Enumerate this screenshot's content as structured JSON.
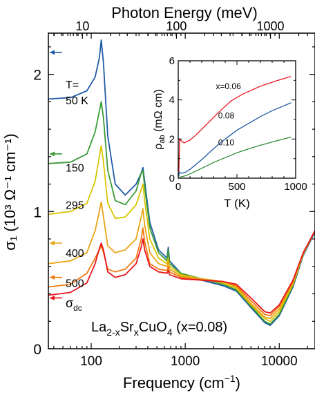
{
  "chart_data": [
    {
      "type": "line",
      "title": "",
      "top_axis_label": "Photon Energy (meV)",
      "top_ticks": [
        "10",
        "100",
        "1000"
      ],
      "xlabel_prefix": "Frequency (cm",
      "xlabel_suffix": ")",
      "xlabel_exp": "−1",
      "ylabel_text": "σ₁ (10³ Ω⁻¹ cm⁻¹)",
      "x_scale": "log",
      "xlim": [
        35,
        24000
      ],
      "ylim": [
        0,
        2.3
      ],
      "x_ticks": [
        "100",
        "1000",
        "10000"
      ],
      "y_ticks": [
        "0",
        "1",
        "2"
      ],
      "material_parts": [
        "La",
        "2-x",
        "Sr",
        "x",
        "CuO",
        "4",
        " (x=0.08)"
      ],
      "sigma_dc_label": "σ",
      "sigma_dc_sub": "dc",
      "temperature_header": [
        "T=",
        "50 K"
      ],
      "series": [
        {
          "name": "50 K",
          "label": "50 K",
          "color": "#1f5aa6",
          "dc_arrow": 2.16,
          "points": [
            [
              35,
              1.82
            ],
            [
              60,
              1.83
            ],
            [
              90,
              1.88
            ],
            [
              110,
              1.98
            ],
            [
              122,
              2.12
            ],
            [
              128,
              2.25
            ],
            [
              135,
              2.08
            ],
            [
              150,
              1.55
            ],
            [
              180,
              1.2
            ],
            [
              230,
              1.12
            ],
            [
              300,
              1.2
            ],
            [
              340,
              1.28
            ],
            [
              355,
              1.32
            ],
            [
              370,
              1.22
            ],
            [
              420,
              0.92
            ],
            [
              520,
              0.72
            ],
            [
              640,
              0.66
            ],
            [
              660,
              0.74
            ],
            [
              680,
              0.64
            ],
            [
              900,
              0.55
            ],
            [
              1500,
              0.5
            ],
            [
              2500,
              0.46
            ],
            [
              3500,
              0.42
            ],
            [
              5000,
              0.3
            ],
            [
              7000,
              0.19
            ],
            [
              8000,
              0.17
            ],
            [
              10000,
              0.24
            ],
            [
              14000,
              0.45
            ],
            [
              18000,
              0.68
            ],
            [
              24000,
              0.85
            ]
          ]
        },
        {
          "name": "150",
          "label": "150",
          "color": "#3a9a35",
          "dc_arrow": 1.42,
          "points": [
            [
              35,
              1.35
            ],
            [
              60,
              1.36
            ],
            [
              90,
              1.42
            ],
            [
              110,
              1.58
            ],
            [
              122,
              1.73
            ],
            [
              128,
              1.8
            ],
            [
              135,
              1.68
            ],
            [
              150,
              1.3
            ],
            [
              180,
              1.08
            ],
            [
              230,
              1.05
            ],
            [
              300,
              1.15
            ],
            [
              340,
              1.28
            ],
            [
              355,
              1.3
            ],
            [
              370,
              1.18
            ],
            [
              420,
              0.88
            ],
            [
              520,
              0.7
            ],
            [
              640,
              0.64
            ],
            [
              660,
              0.72
            ],
            [
              680,
              0.62
            ],
            [
              900,
              0.55
            ],
            [
              1500,
              0.51
            ],
            [
              2500,
              0.47
            ],
            [
              3500,
              0.43
            ],
            [
              5000,
              0.31
            ],
            [
              7000,
              0.2
            ],
            [
              8000,
              0.18
            ],
            [
              10000,
              0.25
            ],
            [
              14000,
              0.46
            ],
            [
              18000,
              0.69
            ],
            [
              24000,
              0.86
            ]
          ]
        },
        {
          "name": "295",
          "label": "295",
          "color": "#d9c400",
          "dc_arrow": null,
          "points": [
            [
              35,
              0.98
            ],
            [
              60,
              1.0
            ],
            [
              90,
              1.06
            ],
            [
              110,
              1.22
            ],
            [
              122,
              1.4
            ],
            [
              128,
              1.48
            ],
            [
              135,
              1.36
            ],
            [
              150,
              1.06
            ],
            [
              180,
              0.95
            ],
            [
              230,
              0.96
            ],
            [
              300,
              1.05
            ],
            [
              340,
              1.16
            ],
            [
              355,
              1.2
            ],
            [
              370,
              1.08
            ],
            [
              420,
              0.8
            ],
            [
              520,
              0.66
            ],
            [
              640,
              0.62
            ],
            [
              660,
              0.66
            ],
            [
              680,
              0.6
            ],
            [
              900,
              0.54
            ],
            [
              1500,
              0.51
            ],
            [
              2500,
              0.48
            ],
            [
              3500,
              0.44
            ],
            [
              5000,
              0.32
            ],
            [
              7000,
              0.22
            ],
            [
              8000,
              0.2
            ],
            [
              10000,
              0.27
            ],
            [
              14000,
              0.47
            ],
            [
              18000,
              0.69
            ],
            [
              24000,
              0.86
            ]
          ]
        },
        {
          "name": "400",
          "label": "400",
          "color": "#e8a313",
          "dc_arrow": 0.77,
          "points": [
            [
              35,
              0.62
            ],
            [
              60,
              0.64
            ],
            [
              90,
              0.7
            ],
            [
              110,
              0.86
            ],
            [
              122,
              1.0
            ],
            [
              128,
              1.07
            ],
            [
              135,
              0.96
            ],
            [
              150,
              0.75
            ],
            [
              180,
              0.7
            ],
            [
              230,
              0.72
            ],
            [
              300,
              0.8
            ],
            [
              340,
              0.96
            ],
            [
              355,
              1.02
            ],
            [
              370,
              0.9
            ],
            [
              420,
              0.7
            ],
            [
              520,
              0.62
            ],
            [
              640,
              0.6
            ],
            [
              660,
              0.64
            ],
            [
              680,
              0.58
            ],
            [
              900,
              0.53
            ],
            [
              1500,
              0.51
            ],
            [
              2500,
              0.49
            ],
            [
              3500,
              0.45
            ],
            [
              5000,
              0.33
            ],
            [
              7000,
              0.23
            ],
            [
              8000,
              0.22
            ],
            [
              10000,
              0.29
            ],
            [
              14000,
              0.48
            ],
            [
              18000,
              0.7
            ],
            [
              24000,
              0.86
            ]
          ]
        },
        {
          "name": "500",
          "label": "500",
          "color": "#f07a10",
          "dc_arrow": 0.52,
          "points": [
            [
              35,
              0.45
            ],
            [
              60,
              0.47
            ],
            [
              90,
              0.55
            ],
            [
              110,
              0.66
            ],
            [
              122,
              0.72
            ],
            [
              128,
              0.75
            ],
            [
              135,
              0.7
            ],
            [
              150,
              0.58
            ],
            [
              180,
              0.56
            ],
            [
              230,
              0.58
            ],
            [
              300,
              0.66
            ],
            [
              340,
              0.8
            ],
            [
              355,
              0.88
            ],
            [
              370,
              0.78
            ],
            [
              420,
              0.62
            ],
            [
              520,
              0.58
            ],
            [
              640,
              0.57
            ],
            [
              660,
              0.6
            ],
            [
              680,
              0.56
            ],
            [
              900,
              0.52
            ],
            [
              1500,
              0.5
            ],
            [
              2500,
              0.49
            ],
            [
              3500,
              0.46
            ],
            [
              5000,
              0.35
            ],
            [
              7000,
              0.25
            ],
            [
              8000,
              0.24
            ],
            [
              10000,
              0.31
            ],
            [
              14000,
              0.49
            ],
            [
              18000,
              0.7
            ],
            [
              24000,
              0.86
            ]
          ]
        },
        {
          "name": "red",
          "label": "",
          "color": "#e8141a",
          "dc_arrow": 0.37,
          "points": [
            [
              35,
              0.39
            ],
            [
              60,
              0.41
            ],
            [
              90,
              0.48
            ],
            [
              110,
              0.62
            ],
            [
              122,
              0.73
            ],
            [
              128,
              0.77
            ],
            [
              135,
              0.72
            ],
            [
              150,
              0.56
            ],
            [
              180,
              0.52
            ],
            [
              230,
              0.54
            ],
            [
              300,
              0.62
            ],
            [
              340,
              0.74
            ],
            [
              355,
              0.8
            ],
            [
              370,
              0.72
            ],
            [
              420,
              0.6
            ],
            [
              520,
              0.56
            ],
            [
              640,
              0.55
            ],
            [
              660,
              0.57
            ],
            [
              680,
              0.54
            ],
            [
              900,
              0.51
            ],
            [
              1500,
              0.5
            ],
            [
              2500,
              0.49
            ],
            [
              3500,
              0.47
            ],
            [
              5000,
              0.37
            ],
            [
              7000,
              0.27
            ],
            [
              8000,
              0.26
            ],
            [
              10000,
              0.32
            ],
            [
              14000,
              0.5
            ],
            [
              18000,
              0.7
            ],
            [
              24000,
              0.86
            ]
          ]
        }
      ]
    },
    {
      "type": "line",
      "title": "",
      "xlabel": "T (K)",
      "ylabel_main": "ρ",
      "ylabel_sub": "ab",
      "ylabel_rest": " (mΩ cm)",
      "xlim": [
        0,
        1000
      ],
      "ylim": [
        0,
        6
      ],
      "x_ticks": [
        "0",
        "500",
        "1000"
      ],
      "y_ticks": [
        "0",
        "2",
        "4",
        "6"
      ],
      "series": [
        {
          "name": "x=0.06",
          "label": "x=0.06",
          "color": "#e8141a",
          "points": [
            [
              5,
              0.3
            ],
            [
              12,
              2.0
            ],
            [
              25,
              1.9
            ],
            [
              50,
              1.8
            ],
            [
              100,
              1.95
            ],
            [
              150,
              2.2
            ],
            [
              250,
              2.8
            ],
            [
              350,
              3.4
            ],
            [
              450,
              3.95
            ],
            [
              550,
              4.3
            ],
            [
              700,
              4.7
            ],
            [
              850,
              5.0
            ],
            [
              960,
              5.2
            ]
          ]
        },
        {
          "name": "0.08",
          "label": "0.08",
          "color": "#1f5aa6",
          "points": [
            [
              5,
              0.1
            ],
            [
              10,
              0.3
            ],
            [
              30,
              0.25
            ],
            [
              60,
              0.3
            ],
            [
              100,
              0.45
            ],
            [
              200,
              0.95
            ],
            [
              300,
              1.5
            ],
            [
              400,
              2.0
            ],
            [
              500,
              2.45
            ],
            [
              600,
              2.8
            ],
            [
              700,
              3.15
            ],
            [
              800,
              3.45
            ],
            [
              960,
              3.85
            ]
          ]
        },
        {
          "name": "0.10",
          "label": "0.10",
          "color": "#2e8b3a",
          "points": [
            [
              10,
              0.05
            ],
            [
              60,
              0.12
            ],
            [
              100,
              0.22
            ],
            [
              200,
              0.5
            ],
            [
              300,
              0.8
            ],
            [
              400,
              1.05
            ],
            [
              500,
              1.3
            ],
            [
              600,
              1.5
            ],
            [
              700,
              1.68
            ],
            [
              800,
              1.85
            ],
            [
              960,
              2.1
            ]
          ]
        }
      ]
    }
  ]
}
